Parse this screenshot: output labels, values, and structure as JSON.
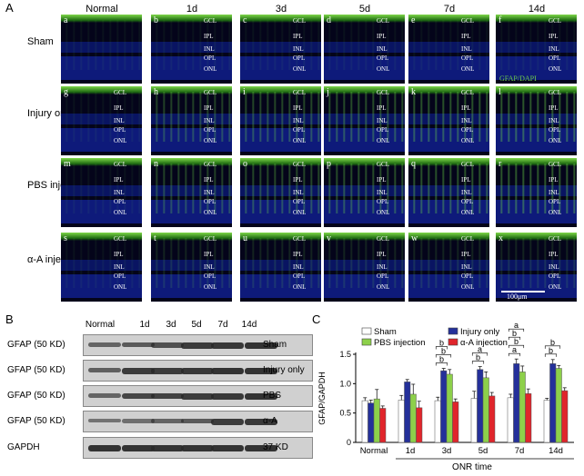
{
  "panel_a": {
    "letter": "A",
    "columns": [
      "Normal",
      "1d",
      "3d",
      "5d",
      "7d",
      "14d"
    ],
    "rows": [
      "Sham",
      "Injury only",
      "PBS injection",
      "α-A injection"
    ],
    "cell_letters": [
      "a",
      "b",
      "c",
      "d",
      "e",
      "f",
      "g",
      "h",
      "i",
      "j",
      "k",
      "l",
      "m",
      "n",
      "o",
      "p",
      "q",
      "r",
      "s",
      "t",
      "u",
      "v",
      "w",
      "x"
    ],
    "layers": [
      "GCL",
      "IPL",
      "INL",
      "OPL",
      "ONL"
    ],
    "overlay_label": "GFAP/DAPI",
    "scale_label": "100μm"
  },
  "panel_b": {
    "letter": "B",
    "lanes": [
      "Normal",
      "1d",
      "3d",
      "5d",
      "7d",
      "14d"
    ],
    "left_labels": [
      "GFAP (50 KD)",
      "GFAP (50 KD)",
      "GFAP (50 KD)",
      "GFAP (50 KD)",
      "GAPDH"
    ],
    "right_labels": [
      "Sham",
      "Injury only",
      "PBS",
      "α-A",
      "37 KD"
    ]
  },
  "panel_c": {
    "letter": "C",
    "chart_data": {
      "type": "bar",
      "categories": [
        "Normal",
        "1d",
        "3d",
        "5d",
        "7d",
        "14d"
      ],
      "series": [
        {
          "name": "Sham",
          "color": "#ffffff",
          "values": [
            0.71,
            0.72,
            0.71,
            0.75,
            0.76,
            0.72
          ],
          "err": [
            0.05,
            0.08,
            0.06,
            0.12,
            0.06,
            0.03
          ]
        },
        {
          "name": "Injury only",
          "color": "#24309a",
          "values": [
            0.67,
            1.03,
            1.22,
            1.24,
            1.34,
            1.34
          ],
          "err": [
            0.05,
            0.04,
            0.04,
            0.05,
            0.08,
            0.07
          ]
        },
        {
          "name": "PBS injection",
          "color": "#8dd04a",
          "values": [
            0.74,
            0.82,
            1.16,
            1.1,
            1.2,
            1.26
          ],
          "err": [
            0.16,
            0.17,
            0.08,
            0.1,
            0.1,
            0.05
          ]
        },
        {
          "name": "α-A injection",
          "color": "#e0252b",
          "values": [
            0.58,
            0.59,
            0.69,
            0.79,
            0.83,
            0.88
          ],
          "err": [
            0.04,
            0.11,
            0.05,
            0.06,
            0.08,
            0.05
          ]
        }
      ],
      "ylabel": "GFAP/GAPDH",
      "xlabel": "ONR time",
      "ylim": [
        0,
        1.5
      ],
      "yticks": [
        "0",
        "0.5",
        "1.0",
        "1.5"
      ],
      "significance": [
        {
          "cat": 2,
          "labels": [
            "b",
            "b",
            "b"
          ]
        },
        {
          "cat": 3,
          "labels": [
            "b",
            "a"
          ]
        },
        {
          "cat": 4,
          "labels": [
            "a",
            "b",
            "b",
            "a"
          ]
        },
        {
          "cat": 5,
          "labels": [
            "b",
            "b"
          ]
        }
      ]
    }
  }
}
